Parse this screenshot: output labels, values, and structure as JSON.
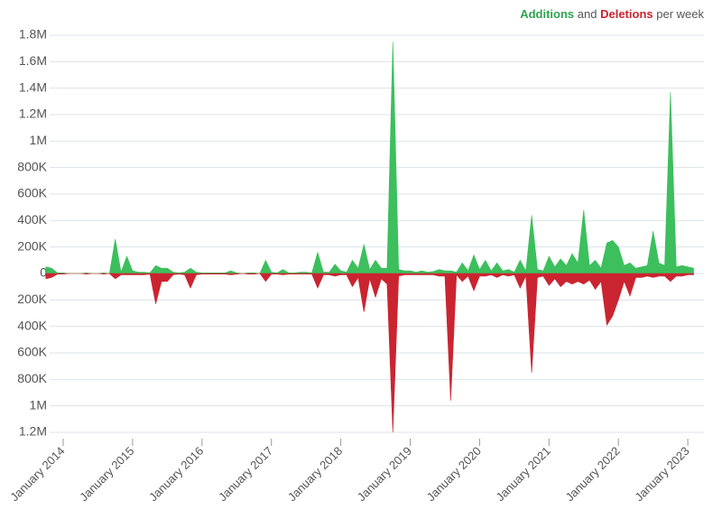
{
  "chart_data": {
    "type": "area",
    "legend_joiner": "and",
    "legend_suffix": "per week",
    "x": [
      "2013-10",
      "2013-11",
      "2013-12",
      "2014-01",
      "2014-02",
      "2014-03",
      "2014-04",
      "2014-05",
      "2014-06",
      "2014-07",
      "2014-08",
      "2014-09",
      "2014-10",
      "2014-11",
      "2014-12",
      "2015-01",
      "2015-02",
      "2015-03",
      "2015-04",
      "2015-05",
      "2015-06",
      "2015-07",
      "2015-08",
      "2015-09",
      "2015-10",
      "2015-11",
      "2015-12",
      "2016-01",
      "2016-02",
      "2016-03",
      "2016-04",
      "2016-05",
      "2016-06",
      "2016-07",
      "2016-08",
      "2016-09",
      "2016-10",
      "2016-11",
      "2016-12",
      "2017-01",
      "2017-02",
      "2017-03",
      "2017-04",
      "2017-05",
      "2017-06",
      "2017-07",
      "2017-08",
      "2017-09",
      "2017-10",
      "2017-11",
      "2017-12",
      "2018-01",
      "2018-02",
      "2018-03",
      "2018-04",
      "2018-05",
      "2018-06",
      "2018-07",
      "2018-08",
      "2018-09",
      "2018-10",
      "2018-11",
      "2018-12",
      "2019-01",
      "2019-02",
      "2019-03",
      "2019-04",
      "2019-05",
      "2019-06",
      "2019-07",
      "2019-08",
      "2019-09",
      "2019-10",
      "2019-11",
      "2019-12",
      "2020-01",
      "2020-02",
      "2020-03",
      "2020-04",
      "2020-05",
      "2020-06",
      "2020-07",
      "2020-08",
      "2020-09",
      "2020-10",
      "2020-11",
      "2020-12",
      "2021-01",
      "2021-02",
      "2021-03",
      "2021-04",
      "2021-05",
      "2021-06",
      "2021-07",
      "2021-08",
      "2021-09",
      "2021-10",
      "2021-11",
      "2021-12",
      "2022-01",
      "2022-02",
      "2022-03",
      "2022-04",
      "2022-05",
      "2022-06",
      "2022-07",
      "2022-08",
      "2022-09",
      "2022-10",
      "2022-11",
      "2022-12",
      "2023-01",
      "2023-02"
    ],
    "series": [
      {
        "name": "Additions",
        "color": "#3cbf5c",
        "values": [
          50000,
          40000,
          5000,
          5000,
          0,
          0,
          0,
          5000,
          0,
          0,
          5000,
          0,
          260000,
          10000,
          130000,
          20000,
          10000,
          10000,
          5000,
          60000,
          40000,
          40000,
          10000,
          5000,
          10000,
          40000,
          10000,
          5000,
          5000,
          5000,
          5000,
          5000,
          20000,
          5000,
          0,
          5000,
          5000,
          0,
          100000,
          10000,
          5000,
          30000,
          5000,
          5000,
          10000,
          10000,
          5000,
          160000,
          10000,
          10000,
          70000,
          20000,
          10000,
          100000,
          40000,
          220000,
          30000,
          100000,
          40000,
          40000,
          1750000,
          30000,
          20000,
          20000,
          10000,
          20000,
          10000,
          15000,
          30000,
          20000,
          20000,
          10000,
          80000,
          20000,
          140000,
          30000,
          100000,
          20000,
          80000,
          20000,
          30000,
          10000,
          100000,
          20000,
          440000,
          30000,
          20000,
          130000,
          50000,
          110000,
          60000,
          150000,
          80000,
          480000,
          60000,
          100000,
          40000,
          230000,
          250000,
          200000,
          60000,
          80000,
          40000,
          50000,
          60000,
          320000,
          80000,
          60000,
          1370000,
          50000,
          60000,
          50000,
          40000
        ]
      },
      {
        "name": "Deletions",
        "color": "#cb2431",
        "values": [
          -40000,
          -30000,
          -5000,
          -5000,
          0,
          0,
          0,
          -5000,
          0,
          0,
          -5000,
          0,
          -40000,
          -10000,
          -10000,
          -10000,
          -10000,
          -10000,
          -5000,
          -230000,
          -60000,
          -60000,
          -10000,
          -5000,
          -10000,
          -110000,
          -10000,
          -5000,
          -5000,
          -5000,
          -5000,
          -5000,
          -10000,
          -5000,
          0,
          -5000,
          -5000,
          0,
          -60000,
          -5000,
          -5000,
          -10000,
          -5000,
          -5000,
          -5000,
          -5000,
          -5000,
          -110000,
          -10000,
          -10000,
          -20000,
          -10000,
          -10000,
          -100000,
          -30000,
          -290000,
          -40000,
          -180000,
          -40000,
          -80000,
          -1200000,
          -20000,
          -10000,
          -10000,
          -10000,
          -10000,
          -10000,
          -10000,
          -20000,
          -20000,
          -960000,
          -10000,
          -60000,
          -20000,
          -130000,
          -20000,
          -20000,
          -10000,
          -30000,
          -10000,
          -20000,
          -10000,
          -110000,
          -20000,
          -750000,
          -30000,
          -20000,
          -90000,
          -40000,
          -100000,
          -60000,
          -80000,
          -60000,
          -80000,
          -50000,
          -120000,
          -60000,
          -390000,
          -320000,
          -200000,
          -60000,
          -170000,
          -30000,
          -30000,
          -20000,
          -30000,
          -20000,
          -20000,
          -60000,
          -20000,
          -20000,
          -10000,
          -10000
        ]
      }
    ],
    "ylim": [
      -1200000,
      1800000
    ],
    "yticks": [
      {
        "value": 1800000,
        "label": "1.8M"
      },
      {
        "value": 1600000,
        "label": "1.6M"
      },
      {
        "value": 1400000,
        "label": "1.4M"
      },
      {
        "value": 1200000,
        "label": "1.2M"
      },
      {
        "value": 1000000,
        "label": "1M"
      },
      {
        "value": 800000,
        "label": "800K"
      },
      {
        "value": 600000,
        "label": "600K"
      },
      {
        "value": 400000,
        "label": "400K"
      },
      {
        "value": 200000,
        "label": "200K"
      },
      0,
      {
        "value": -200000,
        "label": "200K"
      },
      {
        "value": -400000,
        "label": "400K"
      },
      {
        "value": -600000,
        "label": "600K"
      },
      {
        "value": -800000,
        "label": "800K"
      },
      {
        "value": -1000000,
        "label": "1M"
      },
      {
        "value": -1200000,
        "label": "1.2M"
      }
    ],
    "xticks": [
      {
        "value": "2014-01",
        "label": "January 2014"
      },
      {
        "value": "2015-01",
        "label": "January 2015"
      },
      {
        "value": "2016-01",
        "label": "January 2016"
      },
      {
        "value": "2017-01",
        "label": "January 2017"
      },
      {
        "value": "2018-01",
        "label": "January 2018"
      },
      {
        "value": "2019-01",
        "label": "January 2019"
      },
      {
        "value": "2020-01",
        "label": "January 2020"
      },
      {
        "value": "2021-01",
        "label": "January 2021"
      },
      {
        "value": "2022-01",
        "label": "January 2022"
      },
      {
        "value": "2023-01",
        "label": "January 2023"
      }
    ],
    "grid": true,
    "legend": "top-right"
  }
}
